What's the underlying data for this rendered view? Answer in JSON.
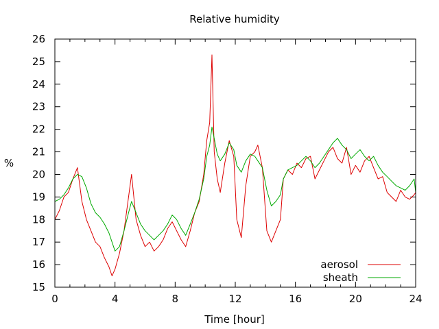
{
  "chart_data": {
    "type": "line",
    "title": "Relative humidity",
    "xlabel": "Time [hour]",
    "ylabel": "%",
    "xlim": [
      0,
      24
    ],
    "ylim": [
      15,
      26
    ],
    "xticks": [
      0,
      4,
      8,
      12,
      16,
      20,
      24
    ],
    "yticks": [
      15,
      16,
      17,
      18,
      19,
      20,
      21,
      22,
      23,
      24,
      25,
      26
    ],
    "grid": false,
    "legend": "bottom-right",
    "series": [
      {
        "name": "aerosol",
        "color": "#dd0000",
        "x": [
          0,
          0.3,
          0.6,
          0.9,
          1.2,
          1.5,
          1.8,
          2.1,
          2.4,
          2.7,
          3.0,
          3.3,
          3.6,
          3.8,
          4.0,
          4.3,
          4.6,
          4.9,
          5.1,
          5.4,
          5.7,
          6.0,
          6.3,
          6.6,
          6.9,
          7.2,
          7.5,
          7.8,
          8.1,
          8.4,
          8.7,
          9.0,
          9.3,
          9.6,
          9.9,
          10.1,
          10.3,
          10.45,
          10.6,
          10.8,
          11.0,
          11.3,
          11.6,
          11.9,
          12.1,
          12.4,
          12.7,
          13.0,
          13.3,
          13.5,
          13.8,
          14.1,
          14.4,
          14.7,
          15.0,
          15.2,
          15.5,
          15.8,
          16.1,
          16.4,
          16.7,
          17.0,
          17.3,
          17.6,
          17.9,
          18.2,
          18.5,
          18.8,
          19.1,
          19.4,
          19.7,
          20.0,
          20.3,
          20.6,
          20.9,
          21.2,
          21.5,
          21.8,
          22.1,
          22.4,
          22.7,
          23.0,
          23.3,
          23.6,
          23.9,
          24.0
        ],
        "y": [
          18.0,
          18.4,
          19.0,
          19.2,
          19.8,
          20.3,
          18.8,
          18.0,
          17.5,
          17.0,
          16.8,
          16.3,
          15.9,
          15.5,
          15.8,
          16.5,
          17.5,
          19.0,
          20.0,
          18.0,
          17.3,
          16.8,
          17.0,
          16.6,
          16.8,
          17.1,
          17.6,
          17.9,
          17.5,
          17.1,
          16.8,
          17.5,
          18.3,
          18.8,
          20.0,
          21.5,
          22.3,
          25.3,
          21.0,
          19.8,
          19.2,
          20.5,
          21.5,
          20.8,
          18.0,
          17.2,
          19.5,
          20.8,
          21.0,
          21.3,
          20.3,
          17.5,
          17.0,
          17.5,
          18.0,
          19.8,
          20.2,
          20.0,
          20.5,
          20.3,
          20.7,
          20.8,
          19.8,
          20.2,
          20.6,
          21.0,
          21.2,
          20.7,
          20.5,
          21.2,
          20.0,
          20.4,
          20.1,
          20.6,
          20.8,
          20.3,
          19.8,
          19.9,
          19.2,
          19.0,
          18.8,
          19.3,
          19.0,
          18.9,
          19.1,
          19.2
        ]
      },
      {
        "name": "sheath",
        "color": "#00aa00",
        "x": [
          0,
          0.3,
          0.6,
          0.9,
          1.2,
          1.5,
          1.8,
          2.1,
          2.4,
          2.7,
          3.0,
          3.3,
          3.6,
          3.8,
          4.0,
          4.3,
          4.6,
          4.9,
          5.1,
          5.4,
          5.7,
          6.0,
          6.3,
          6.6,
          6.9,
          7.2,
          7.5,
          7.8,
          8.1,
          8.4,
          8.7,
          9.0,
          9.3,
          9.6,
          9.9,
          10.1,
          10.3,
          10.45,
          10.6,
          10.8,
          11.0,
          11.3,
          11.6,
          11.9,
          12.1,
          12.4,
          12.7,
          13.0,
          13.3,
          13.5,
          13.8,
          14.1,
          14.4,
          14.7,
          15.0,
          15.2,
          15.5,
          15.8,
          16.1,
          16.4,
          16.7,
          17.0,
          17.3,
          17.6,
          17.9,
          18.2,
          18.5,
          18.8,
          19.1,
          19.4,
          19.7,
          20.0,
          20.3,
          20.6,
          20.9,
          21.2,
          21.5,
          21.8,
          22.1,
          22.4,
          22.7,
          23.0,
          23.3,
          23.6,
          23.9,
          24.0
        ],
        "y": [
          18.8,
          18.9,
          19.1,
          19.4,
          19.8,
          20.0,
          19.9,
          19.4,
          18.7,
          18.3,
          18.1,
          17.8,
          17.4,
          17.0,
          16.6,
          16.8,
          17.5,
          18.3,
          18.8,
          18.3,
          17.8,
          17.5,
          17.3,
          17.1,
          17.3,
          17.5,
          17.8,
          18.2,
          18.0,
          17.6,
          17.3,
          17.8,
          18.3,
          18.9,
          19.8,
          20.8,
          21.3,
          22.1,
          21.6,
          20.9,
          20.6,
          20.9,
          21.4,
          21.1,
          20.4,
          20.1,
          20.6,
          20.9,
          20.8,
          20.6,
          20.3,
          19.3,
          18.6,
          18.8,
          19.1,
          19.8,
          20.2,
          20.3,
          20.4,
          20.6,
          20.8,
          20.6,
          20.3,
          20.5,
          20.8,
          21.1,
          21.4,
          21.6,
          21.3,
          21.1,
          20.7,
          20.9,
          21.1,
          20.8,
          20.6,
          20.8,
          20.4,
          20.1,
          19.9,
          19.7,
          19.5,
          19.4,
          19.3,
          19.5,
          19.8,
          19.2
        ]
      }
    ]
  }
}
